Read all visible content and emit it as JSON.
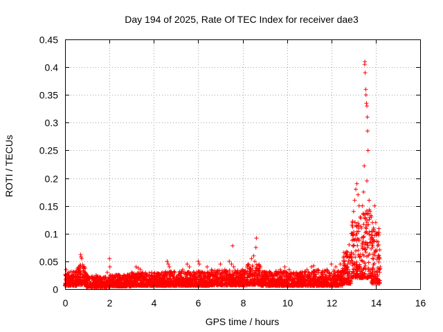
{
  "chart_data": {
    "type": "scatter",
    "title": "Day 194 of 2025, Rate Of TEC Index for receiver dae3",
    "xlabel": "GPS time / hours",
    "ylabel": "ROTI / TECUs",
    "xlim": [
      0,
      16
    ],
    "ylim": [
      0,
      0.45
    ],
    "xticks": [
      0,
      2,
      4,
      6,
      8,
      10,
      12,
      14,
      16
    ],
    "yticks": [
      0,
      0.05,
      0.1,
      0.15,
      0.2,
      0.25,
      0.3,
      0.35,
      0.4,
      0.45
    ],
    "grid": true,
    "marker": "+",
    "series": [
      {
        "name": "ROTI",
        "color": "#ff0000",
        "points": [
          [
            0.05,
            0.035
          ],
          [
            0.1,
            0.028
          ],
          [
            0.2,
            0.02
          ],
          [
            0.3,
            0.025
          ],
          [
            0.4,
            0.03
          ],
          [
            0.5,
            0.022
          ],
          [
            0.6,
            0.035
          ],
          [
            0.7,
            0.062
          ],
          [
            0.72,
            0.058
          ],
          [
            0.75,
            0.055
          ],
          [
            0.8,
            0.04
          ],
          [
            0.9,
            0.03
          ],
          [
            1.0,
            0.025
          ],
          [
            1.1,
            0.02
          ],
          [
            1.2,
            0.018
          ],
          [
            1.3,
            0.022
          ],
          [
            1.4,
            0.025
          ],
          [
            1.5,
            0.02
          ],
          [
            1.6,
            0.018
          ],
          [
            1.7,
            0.02
          ],
          [
            1.8,
            0.022
          ],
          [
            1.9,
            0.03
          ],
          [
            2.0,
            0.055
          ],
          [
            2.02,
            0.04
          ],
          [
            2.2,
            0.02
          ],
          [
            2.4,
            0.018
          ],
          [
            2.6,
            0.02
          ],
          [
            2.8,
            0.025
          ],
          [
            3.0,
            0.03
          ],
          [
            3.2,
            0.04
          ],
          [
            3.3,
            0.038
          ],
          [
            3.4,
            0.035
          ],
          [
            3.5,
            0.03
          ],
          [
            3.7,
            0.025
          ],
          [
            3.9,
            0.03
          ],
          [
            4.0,
            0.028
          ],
          [
            4.2,
            0.025
          ],
          [
            4.4,
            0.03
          ],
          [
            4.6,
            0.05
          ],
          [
            4.65,
            0.045
          ],
          [
            4.7,
            0.04
          ],
          [
            4.9,
            0.03
          ],
          [
            5.1,
            0.025
          ],
          [
            5.3,
            0.035
          ],
          [
            5.5,
            0.045
          ],
          [
            5.6,
            0.04
          ],
          [
            5.8,
            0.03
          ],
          [
            6.0,
            0.05
          ],
          [
            6.05,
            0.045
          ],
          [
            6.2,
            0.03
          ],
          [
            6.4,
            0.04
          ],
          [
            6.6,
            0.035
          ],
          [
            6.8,
            0.03
          ],
          [
            7.0,
            0.045
          ],
          [
            7.2,
            0.035
          ],
          [
            7.4,
            0.05
          ],
          [
            7.5,
            0.045
          ],
          [
            7.55,
            0.078
          ],
          [
            7.6,
            0.04
          ],
          [
            7.8,
            0.03
          ],
          [
            8.0,
            0.035
          ],
          [
            8.2,
            0.04
          ],
          [
            8.4,
            0.055
          ],
          [
            8.5,
            0.06
          ],
          [
            8.55,
            0.05
          ],
          [
            8.6,
            0.075
          ],
          [
            8.62,
            0.092
          ],
          [
            8.7,
            0.035
          ],
          [
            8.9,
            0.03
          ],
          [
            9.1,
            0.03
          ],
          [
            9.3,
            0.025
          ],
          [
            9.5,
            0.03
          ],
          [
            9.7,
            0.035
          ],
          [
            9.9,
            0.04
          ],
          [
            10.1,
            0.035
          ],
          [
            10.3,
            0.03
          ],
          [
            10.5,
            0.025
          ],
          [
            10.7,
            0.03
          ],
          [
            10.9,
            0.035
          ],
          [
            11.1,
            0.04
          ],
          [
            11.2,
            0.042
          ],
          [
            11.4,
            0.035
          ],
          [
            11.6,
            0.03
          ],
          [
            11.8,
            0.035
          ],
          [
            12.0,
            0.045
          ],
          [
            12.2,
            0.04
          ],
          [
            12.4,
            0.045
          ],
          [
            12.6,
            0.05
          ],
          [
            12.7,
            0.06
          ],
          [
            12.8,
            0.08
          ],
          [
            12.9,
            0.1
          ],
          [
            12.95,
            0.12
          ],
          [
            13.0,
            0.14
          ],
          [
            13.05,
            0.16
          ],
          [
            13.1,
            0.18
          ],
          [
            13.15,
            0.19
          ],
          [
            13.2,
            0.17
          ],
          [
            13.25,
            0.15
          ],
          [
            13.3,
            0.13
          ],
          [
            13.35,
            0.11
          ],
          [
            13.4,
            0.15
          ],
          [
            13.45,
            0.175
          ],
          [
            13.5,
            0.405
          ],
          [
            13.51,
            0.41
          ],
          [
            13.52,
            0.39
          ],
          [
            13.55,
            0.36
          ],
          [
            13.56,
            0.35
          ],
          [
            13.58,
            0.335
          ],
          [
            13.6,
            0.33
          ],
          [
            13.62,
            0.31
          ],
          [
            13.63,
            0.285
          ],
          [
            13.65,
            0.25
          ],
          [
            13.48,
            0.222
          ],
          [
            13.6,
            0.195
          ],
          [
            13.7,
            0.16
          ],
          [
            13.75,
            0.14
          ],
          [
            13.8,
            0.13
          ],
          [
            13.85,
            0.12
          ],
          [
            13.9,
            0.11
          ],
          [
            13.95,
            0.15
          ],
          [
            14.0,
            0.12
          ],
          [
            14.05,
            0.1
          ],
          [
            14.1,
            0.085
          ],
          [
            14.15,
            0.06
          ],
          [
            14.2,
            0.04
          ]
        ]
      }
    ],
    "noise_bands": [
      {
        "x": [
          0.0,
          0.55
        ],
        "y": [
          0.006,
          0.032
        ]
      },
      {
        "x": [
          0.55,
          0.95
        ],
        "y": [
          0.008,
          0.045
        ]
      },
      {
        "x": [
          0.95,
          2.0
        ],
        "y": [
          0.004,
          0.024
        ]
      },
      {
        "x": [
          2.0,
          3.0
        ],
        "y": [
          0.005,
          0.026
        ]
      },
      {
        "x": [
          3.0,
          4.5
        ],
        "y": [
          0.006,
          0.03
        ]
      },
      {
        "x": [
          4.5,
          6.5
        ],
        "y": [
          0.006,
          0.032
        ]
      },
      {
        "x": [
          6.5,
          8.2
        ],
        "y": [
          0.007,
          0.034
        ]
      },
      {
        "x": [
          8.2,
          8.8
        ],
        "y": [
          0.008,
          0.045
        ]
      },
      {
        "x": [
          8.8,
          11.0
        ],
        "y": [
          0.006,
          0.032
        ]
      },
      {
        "x": [
          11.0,
          12.5
        ],
        "y": [
          0.006,
          0.034
        ]
      },
      {
        "x": [
          12.5,
          12.9
        ],
        "y": [
          0.01,
          0.07
        ]
      },
      {
        "x": [
          12.9,
          13.4
        ],
        "y": [
          0.02,
          0.13
        ]
      },
      {
        "x": [
          13.4,
          13.8
        ],
        "y": [
          0.02,
          0.15
        ]
      },
      {
        "x": [
          13.8,
          14.2
        ],
        "y": [
          0.01,
          0.11
        ]
      }
    ]
  }
}
